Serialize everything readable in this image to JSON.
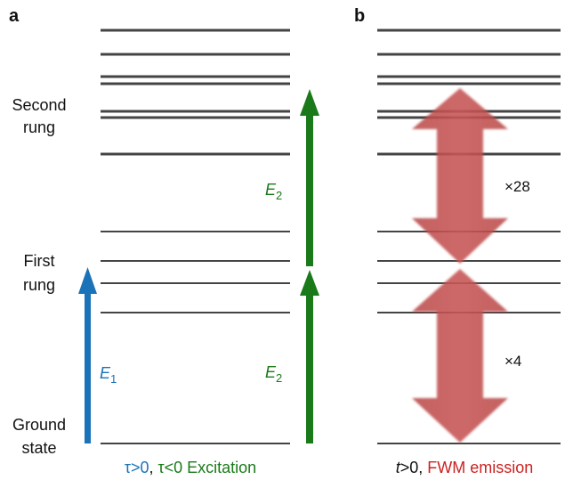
{
  "panel_a": {
    "label": "a",
    "side_labels": {
      "second_rung": [
        "Second",
        "rung"
      ],
      "first_rung": [
        "First",
        "rung"
      ],
      "ground_state": [
        "Ground",
        "state"
      ]
    },
    "arrow_e1": {
      "symbol": "E",
      "subscript": "1",
      "color": "#1a73b8"
    },
    "arrow_e2_lower": {
      "symbol": "E",
      "subscript": "2",
      "color": "#1a7a1a"
    },
    "arrow_e2_upper": {
      "symbol": "E",
      "subscript": "2",
      "color": "#1a7a1a"
    },
    "caption": {
      "part1": "τ>0",
      "comma": ", ",
      "part2": "τ<0 Excitation",
      "color1": "#1a73b8",
      "color2": "#1a7a1a"
    }
  },
  "panel_b": {
    "label": "b",
    "upper_factor": "×28",
    "lower_factor": "×4",
    "arrow_color": "#b83a3a",
    "caption": {
      "part1": "t>0",
      "comma": ", ",
      "part2": "FWM emission",
      "color2": "#cc2222"
    }
  }
}
